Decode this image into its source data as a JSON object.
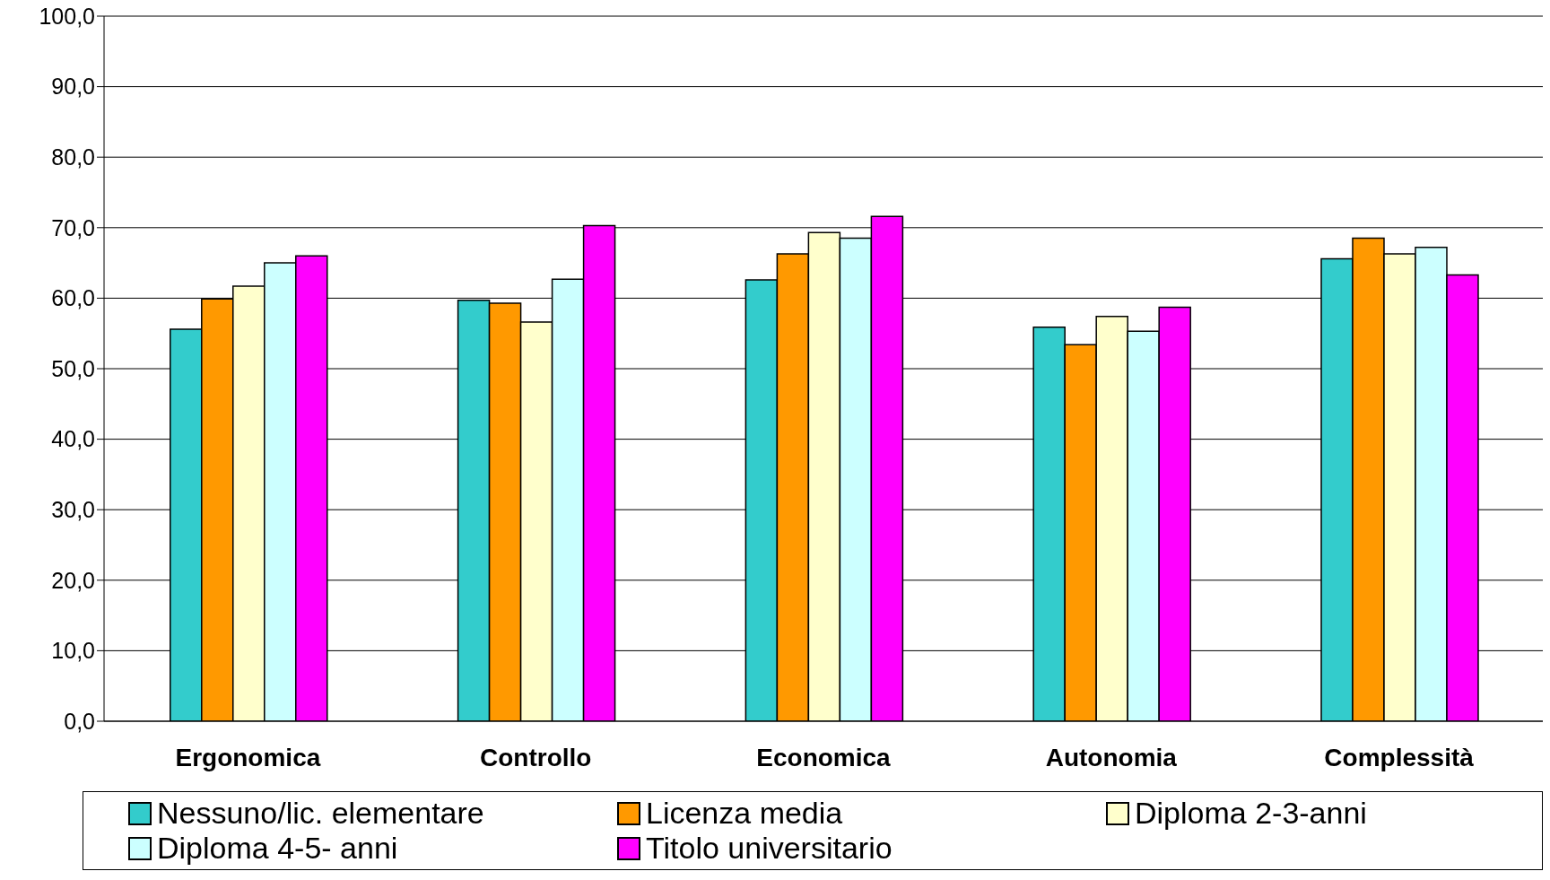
{
  "chart_data": {
    "type": "bar",
    "categories": [
      "Ergonomica",
      "Controllo",
      "Economica",
      "Autonomia",
      "Complessità"
    ],
    "series": [
      {
        "name": "Nessuno/lic. elementare",
        "color": "#33cccc",
        "values": [
          55.6,
          59.7,
          62.6,
          55.9,
          65.6
        ]
      },
      {
        "name": "Licenza media",
        "color": "#ff9900",
        "values": [
          59.9,
          59.3,
          66.3,
          53.4,
          68.5
        ]
      },
      {
        "name": "Diploma 2-3-anni",
        "color": "#ffffcc",
        "values": [
          61.7,
          56.6,
          69.3,
          57.4,
          66.3
        ]
      },
      {
        "name": "Diploma 4-5- anni",
        "color": "#ccffff",
        "values": [
          65.0,
          62.7,
          68.5,
          55.3,
          67.2
        ]
      },
      {
        "name": "Titolo universitario",
        "color": "#ff00ff",
        "values": [
          66.0,
          70.3,
          71.6,
          58.7,
          63.3
        ]
      }
    ],
    "ylim": [
      0,
      100
    ],
    "yticks": [
      {
        "value": 0,
        "label": "0,0"
      },
      {
        "value": 10,
        "label": "10,0"
      },
      {
        "value": 20,
        "label": "20,0"
      },
      {
        "value": 30,
        "label": "30,0"
      },
      {
        "value": 40,
        "label": "40,0"
      },
      {
        "value": 50,
        "label": "50,0"
      },
      {
        "value": 60,
        "label": "60,0"
      },
      {
        "value": 70,
        "label": "70,0"
      },
      {
        "value": 80,
        "label": "80,0"
      },
      {
        "value": 90,
        "label": "90,0"
      },
      {
        "value": 100,
        "label": "100,0"
      }
    ],
    "grid": "y",
    "legend": "bottom"
  }
}
